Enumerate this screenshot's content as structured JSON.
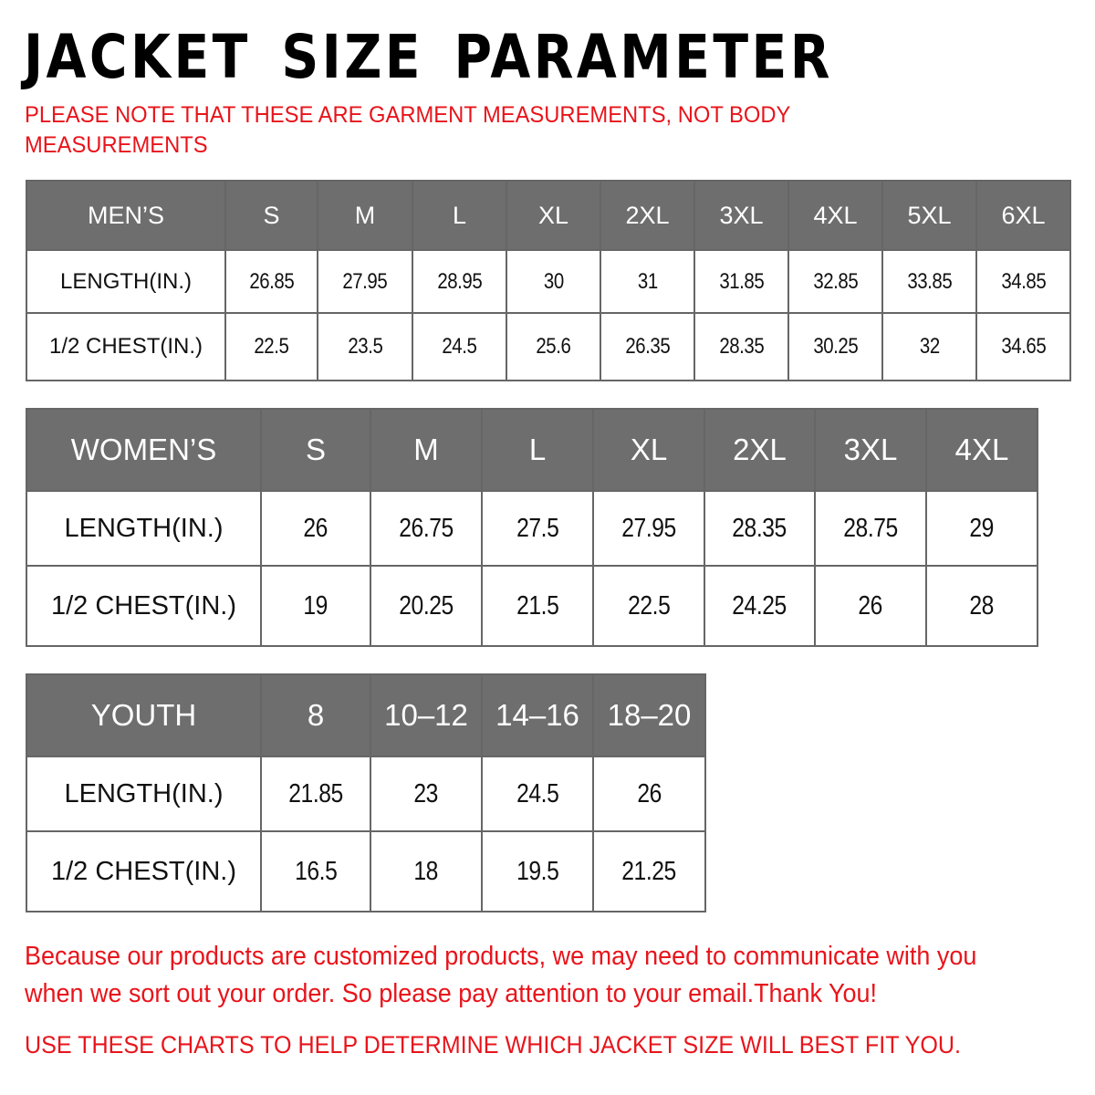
{
  "title": "JACKET SIZE PARAMETER",
  "note": "PLEASE NOTE THAT THESE ARE GARMENT MEASUREMENTS, NOT BODY MEASUREMENTS",
  "colors": {
    "header_bg": "#6e6e6e",
    "accent_red": "#e8141b"
  },
  "tables": {
    "men": {
      "header": [
        "MEN’S",
        "S",
        "M",
        "L",
        "XL",
        "2XL",
        "3XL",
        "4XL",
        "5XL",
        "6XL"
      ],
      "rows": [
        [
          "LENGTH(IN.)",
          "26.85",
          "27.95",
          "28.95",
          "30",
          "31",
          "31.85",
          "32.85",
          "33.85",
          "34.85"
        ],
        [
          "1/2 CHEST(IN.)",
          "22.5",
          "23.5",
          "24.5",
          "25.6",
          "26.35",
          "28.35",
          "30.25",
          "32",
          "34.65"
        ]
      ]
    },
    "women": {
      "header": [
        "WOMEN’S",
        "S",
        "M",
        "L",
        "XL",
        "2XL",
        "3XL",
        "4XL"
      ],
      "rows": [
        [
          "LENGTH(IN.)",
          "26",
          "26.75",
          "27.5",
          "27.95",
          "28.35",
          "28.75",
          "29"
        ],
        [
          "1/2 CHEST(IN.)",
          "19",
          "20.25",
          "21.5",
          "22.5",
          "24.25",
          "26",
          "28"
        ]
      ]
    },
    "youth": {
      "header": [
        "YOUTH",
        "8",
        "10–12",
        "14–16",
        "18–20"
      ],
      "rows": [
        [
          "LENGTH(IN.)",
          "21.85",
          "23",
          "24.5",
          "26"
        ],
        [
          "1/2 CHEST(IN.)",
          "16.5",
          "18",
          "19.5",
          "21.25"
        ]
      ]
    }
  },
  "footer": {
    "message": "Because our products are customized products, we may need to communicate with you when we sort out your order. So please pay attention to your email.Thank You!",
    "instruction": "USE THESE CHARTS TO HELP DETERMINE WHICH JACKET SIZE WILL BEST FIT YOU."
  }
}
